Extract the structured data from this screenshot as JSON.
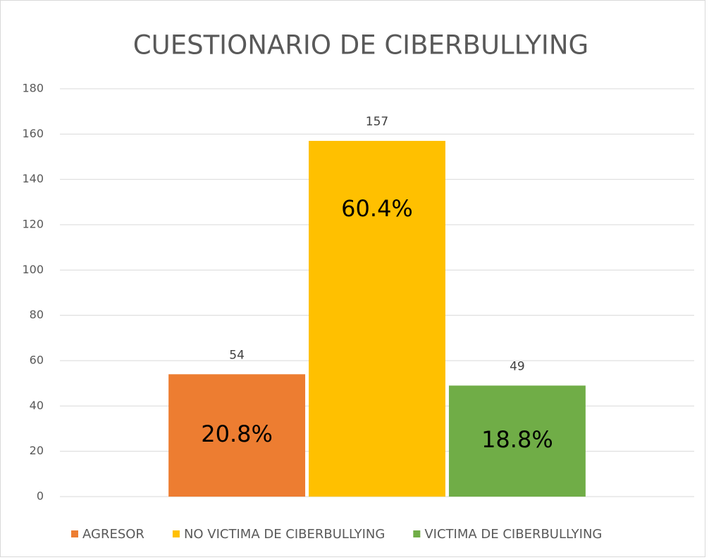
{
  "chart_data": {
    "type": "bar",
    "title": "CUESTIONARIO DE CIBERBULLYING",
    "categories": [
      null
    ],
    "series": [
      {
        "name": "AGRESOR",
        "color": "#ed7d31",
        "values": [
          54
        ],
        "percent_labels": [
          "20.8%"
        ]
      },
      {
        "name": "NO VICTIMA DE CIBERBULLYING",
        "color": "#ffc000",
        "values": [
          157
        ],
        "percent_labels": [
          "60.4%"
        ]
      },
      {
        "name": "VICTIMA DE CIBERBULLYING",
        "color": "#70ad47",
        "values": [
          49
        ],
        "percent_labels": [
          "18.8%"
        ]
      }
    ],
    "ylim": [
      0,
      180
    ],
    "yticks": [
      0,
      20,
      40,
      60,
      80,
      100,
      120,
      140,
      160,
      180
    ],
    "grid": true,
    "legend": "bottom"
  }
}
